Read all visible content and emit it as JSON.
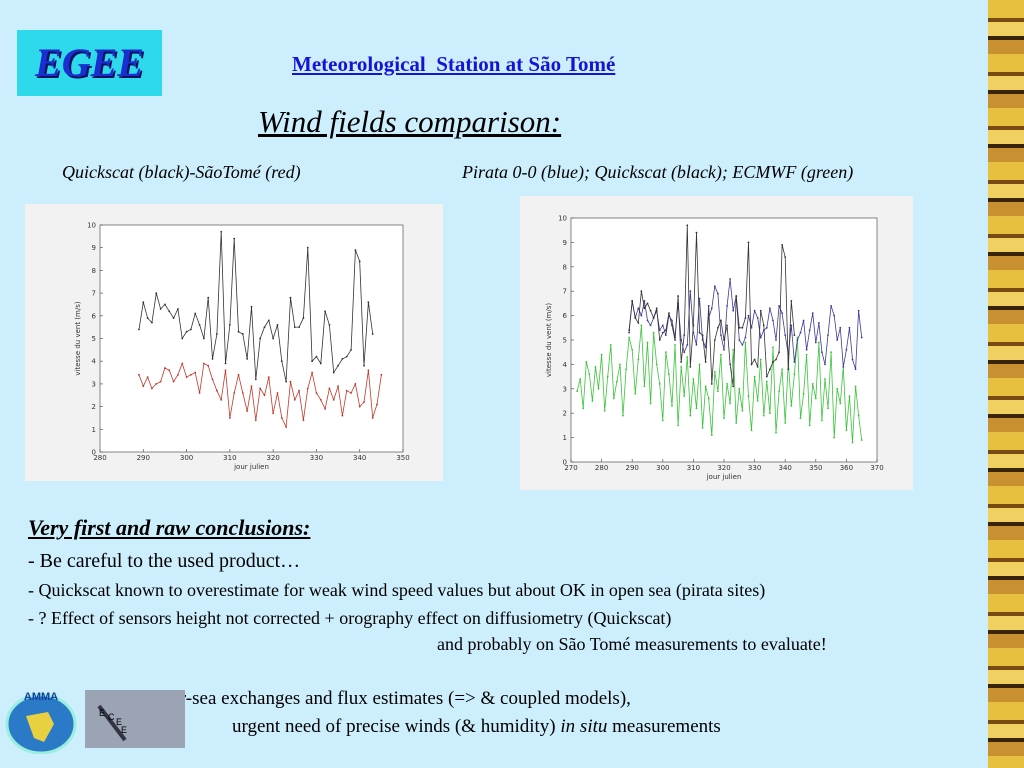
{
  "header": {
    "logo": "EGEE",
    "title": "Meteorological  Station at São Tomé",
    "subtitle": "Wind fields comparison:"
  },
  "chart_data": [
    {
      "type": "line",
      "title": "Quickscat (black)-SãoTomé (red)",
      "x_label": "jour julien",
      "y_label": "vitesse du vent (m/s)",
      "xlim": [
        280,
        350
      ],
      "xticks": [
        280,
        290,
        300,
        310,
        320,
        330,
        340,
        350
      ],
      "ylim": [
        0,
        10
      ],
      "yticks": [
        0,
        1,
        2,
        3,
        4,
        5,
        6,
        7,
        8,
        9,
        10
      ],
      "x": [
        289,
        290,
        291,
        292,
        293,
        294,
        295,
        296,
        297,
        298,
        299,
        300,
        301,
        302,
        303,
        304,
        305,
        306,
        307,
        308,
        309,
        310,
        311,
        312,
        313,
        314,
        315,
        316,
        317,
        318,
        319,
        320,
        321,
        322,
        323,
        324,
        325,
        326,
        327,
        328,
        329,
        330,
        331,
        332,
        333,
        334,
        335,
        336,
        337,
        338,
        339,
        340,
        341,
        342,
        343,
        344,
        345
      ],
      "series": [
        {
          "color": "#333333",
          "values": [
            5.4,
            6.6,
            5.9,
            5.7,
            7.0,
            6.3,
            6.5,
            6.2,
            5.9,
            6.3,
            5.0,
            5.3,
            5.4,
            6.1,
            5.6,
            5.0,
            6.8,
            4.1,
            5.2,
            9.7,
            3.9,
            5.6,
            9.4,
            5.3,
            5.2,
            4.1,
            6.4,
            3.2,
            5.0,
            5.5,
            5.8,
            5.0,
            5.6,
            4.0,
            3.1,
            6.8,
            5.5,
            5.5,
            5.9,
            9.0,
            4.0,
            4.2,
            3.9,
            6.2,
            5.6,
            3.5,
            3.8,
            4.1,
            4.2,
            4.5,
            8.9,
            8.4,
            3.8,
            6.6,
            5.2,
            null,
            null
          ]
        },
        {
          "color": "#c0392b",
          "values": [
            3.4,
            2.9,
            3.3,
            2.8,
            3.0,
            3.1,
            3.7,
            3.6,
            3.1,
            3.4,
            3.9,
            3.3,
            3.4,
            3.5,
            2.6,
            3.9,
            3.8,
            3.2,
            2.7,
            2.3,
            3.6,
            1.5,
            2.6,
            3.4,
            2.6,
            1.8,
            2.9,
            1.4,
            2.8,
            2.5,
            3.3,
            1.7,
            2.6,
            1.5,
            1.1,
            3.1,
            2.3,
            2.7,
            1.4,
            2.8,
            3.5,
            2.6,
            2.3,
            1.9,
            2.8,
            2.3,
            2.9,
            1.6,
            2.7,
            2.6,
            3.0,
            2.0,
            2.2,
            3.6,
            1.5,
            2.1,
            3.4
          ]
        }
      ]
    },
    {
      "type": "line",
      "title": "Pirata 0-0 (blue); Quickscat (black); ECMWF (green)",
      "x_label": "jour julien",
      "y_label": "vitesse du vent (m/s)",
      "xlim": [
        270,
        370
      ],
      "xticks": [
        270,
        280,
        290,
        300,
        310,
        320,
        330,
        340,
        350,
        360,
        370
      ],
      "ylim": [
        0,
        10
      ],
      "yticks": [
        0,
        1,
        2,
        3,
        4,
        5,
        6,
        7,
        8,
        9,
        10
      ],
      "x": [
        271,
        272,
        273,
        274,
        275,
        276,
        277,
        278,
        279,
        280,
        281,
        282,
        283,
        284,
        285,
        286,
        287,
        288,
        289,
        290,
        291,
        292,
        293,
        294,
        295,
        296,
        297,
        298,
        299,
        300,
        301,
        302,
        303,
        304,
        305,
        306,
        307,
        308,
        309,
        310,
        311,
        312,
        313,
        314,
        315,
        316,
        317,
        318,
        319,
        320,
        321,
        322,
        323,
        324,
        325,
        326,
        327,
        328,
        329,
        330,
        331,
        332,
        333,
        334,
        335,
        336,
        337,
        338,
        339,
        340,
        341,
        342,
        343,
        344,
        345,
        346,
        347,
        348,
        349,
        350,
        351,
        352,
        353,
        354,
        355,
        356,
        357,
        358,
        359,
        360,
        361,
        362,
        363,
        364,
        365,
        366
      ],
      "series": [
        {
          "color": "#3ac43a",
          "values": [
            null,
            2.9,
            3.4,
            2.2,
            4.1,
            3.6,
            2.5,
            3.9,
            3.0,
            4.4,
            2.1,
            3.5,
            4.8,
            2.6,
            3.3,
            4.0,
            1.9,
            3.8,
            5.1,
            4.6,
            2.8,
            4.2,
            5.6,
            3.1,
            4.9,
            2.4,
            5.3,
            4.0,
            3.2,
            1.7,
            4.5,
            3.6,
            2.3,
            4.8,
            1.5,
            3.9,
            2.7,
            4.3,
            1.9,
            3.4,
            2.2,
            4.0,
            1.4,
            3.1,
            2.6,
            1.1,
            3.7,
            2.9,
            4.4,
            1.8,
            3.2,
            2.4,
            4.6,
            1.6,
            3.0,
            2.1,
            4.9,
            2.7,
            1.3,
            3.5,
            2.5,
            4.2,
            1.9,
            3.3,
            2.0,
            4.7,
            1.2,
            2.9,
            3.8,
            1.6,
            4.1,
            2.3,
            3.6,
            5.1,
            1.8,
            2.8,
            4.4,
            1.5,
            3.2,
            2.6,
            4.9,
            1.7,
            3.4,
            2.2,
            4.5,
            1.0,
            3.0,
            2.4,
            3.9,
            1.3,
            2.7,
            0.8,
            3.1,
            1.9,
            0.9,
            null
          ]
        },
        {
          "color": "#3b3b9a",
          "values": [
            null,
            null,
            null,
            null,
            null,
            null,
            null,
            null,
            null,
            null,
            null,
            null,
            null,
            null,
            null,
            null,
            null,
            null,
            5.3,
            6.6,
            5.9,
            6.3,
            6.0,
            6.6,
            5.8,
            5.6,
            5.9,
            6.2,
            5.4,
            5.6,
            5.2,
            6.0,
            5.8,
            5.1,
            6.5,
            5.0,
            4.5,
            4.8,
            7.0,
            5.3,
            4.8,
            6.7,
            5.0,
            4.7,
            5.9,
            6.3,
            7.2,
            6.9,
            5.2,
            4.6,
            6.4,
            7.5,
            6.2,
            6.8,
            5.0,
            4.8,
            5.1,
            6.0,
            5.5,
            6.2,
            5.9,
            5.1,
            5.4,
            5.5,
            6.3,
            5.8,
            5.0,
            6.4,
            6.1,
            5.2,
            4.4,
            5.6,
            4.1,
            5.0,
            5.3,
            5.8,
            4.6,
            5.4,
            6.1,
            4.9,
            5.7,
            4.5,
            4.0,
            5.2,
            6.4,
            6.0,
            5.0,
            5.5,
            3.9,
            4.6,
            5.5,
            4.2,
            3.8,
            6.2,
            5.1,
            null
          ]
        },
        {
          "color": "#333333",
          "values": [
            null,
            null,
            null,
            null,
            null,
            null,
            null,
            null,
            null,
            null,
            null,
            null,
            null,
            null,
            null,
            null,
            null,
            null,
            5.4,
            6.6,
            5.9,
            5.7,
            7.0,
            6.3,
            6.5,
            6.2,
            5.9,
            6.3,
            5.0,
            5.3,
            5.4,
            6.1,
            5.6,
            5.0,
            6.8,
            4.1,
            5.2,
            9.7,
            3.9,
            5.6,
            9.4,
            5.3,
            5.2,
            4.1,
            6.4,
            3.2,
            5.0,
            5.5,
            5.8,
            5.0,
            5.6,
            4.0,
            3.1,
            6.8,
            5.5,
            5.5,
            5.9,
            9.0,
            4.0,
            4.2,
            3.9,
            6.2,
            5.6,
            3.5,
            3.8,
            4.1,
            4.2,
            4.5,
            8.9,
            8.4,
            3.8,
            6.6,
            5.2,
            null,
            null,
            null,
            null,
            null,
            null,
            null,
            null,
            null,
            null,
            null,
            null,
            null,
            null,
            null,
            null,
            null,
            null,
            null,
            null,
            null,
            null,
            null
          ]
        }
      ]
    }
  ],
  "conclusions": {
    "heading": "Very first and raw conclusions:",
    "lines": [
      "- Be careful to the used product…",
      "- Quickscat known to overestimate for weak wind speed values but about OK in open sea (pirata sites)",
      "- ? Effect of sensors height not corrected + orography effect on diffusiometry (Quickscat)",
      "and probably on São Tomé measurements to evaluate!"
    ]
  },
  "footer": {
    "line1": "For air-sea exchanges and flux estimates (=> & coupled models),",
    "line2": "urgent need of precise winds (& humidity)",
    "line2_italic": "in situ",
    "line2_end": "measurements"
  },
  "logos": {
    "amma": "AMMA",
    "ecee": [
      "E",
      "C",
      "E",
      "E"
    ]
  }
}
